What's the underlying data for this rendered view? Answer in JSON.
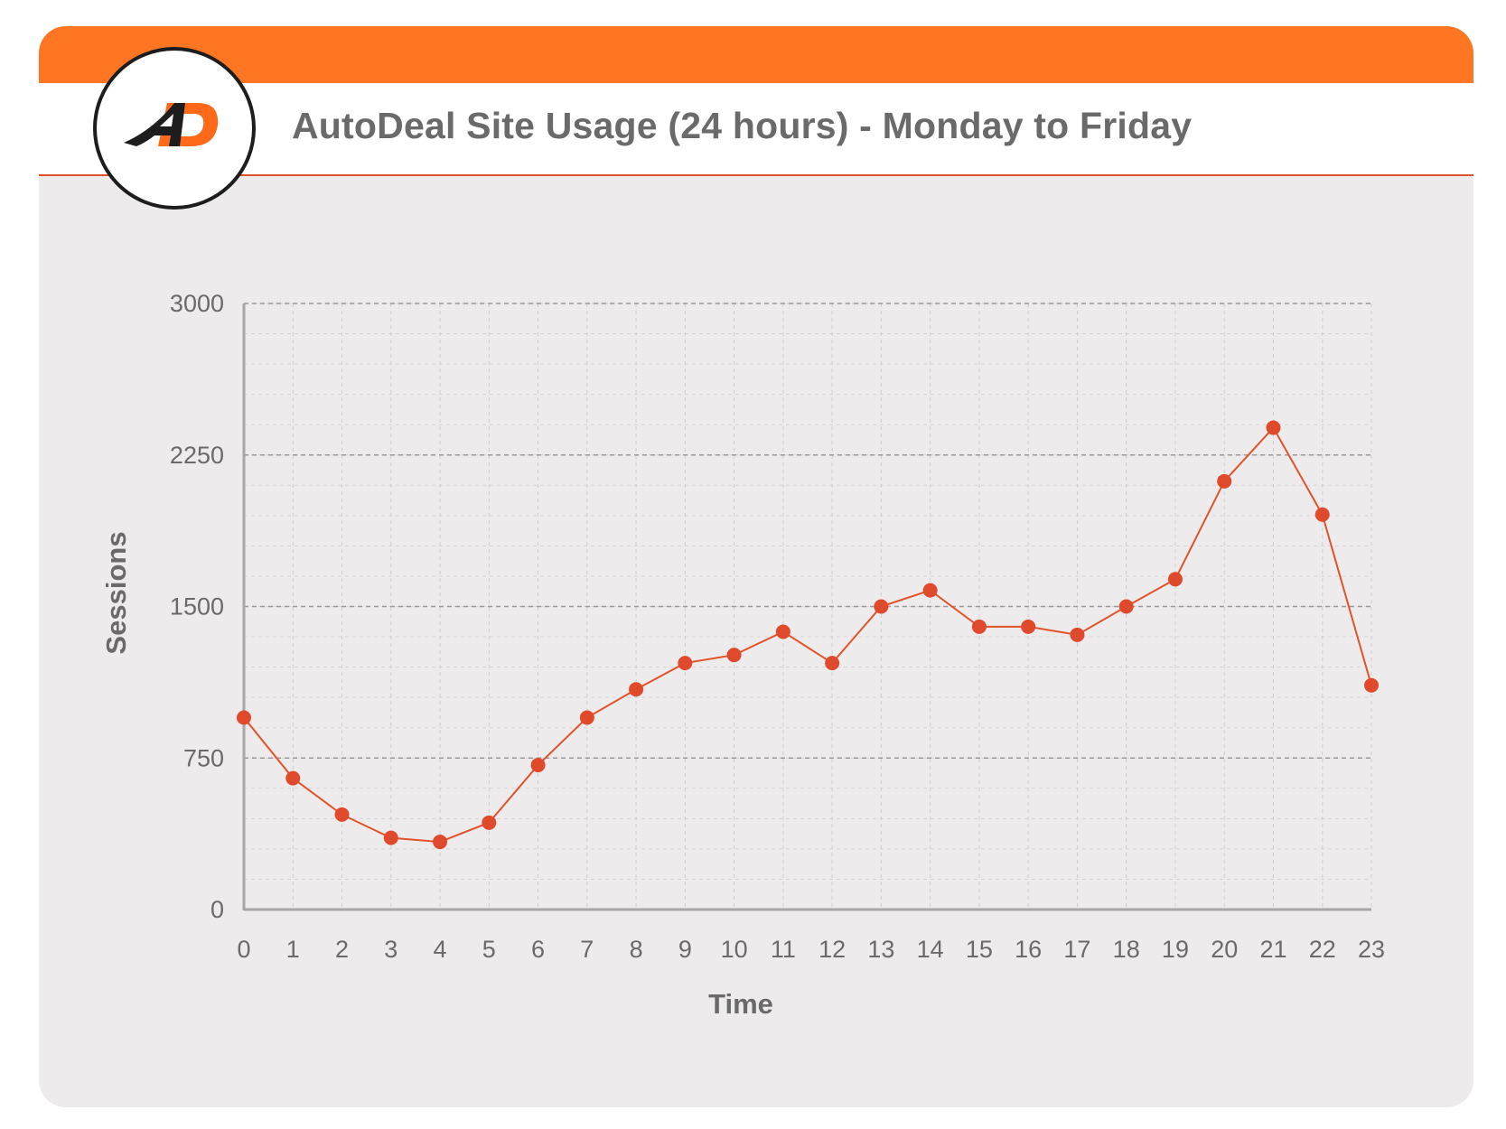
{
  "header": {
    "title": "AutoDeal Site Usage (24 hours) - Monday to Friday"
  },
  "colors": {
    "accent": "#ff7622",
    "line": "#e2522a",
    "point": "#e04a2c",
    "text": "#6a6a6a"
  },
  "chart_data": {
    "type": "line",
    "title": "AutoDeal Site Usage (24 hours) - Monday to Friday",
    "xlabel": "Time",
    "ylabel": "Sessions",
    "categories": [
      "0",
      "1",
      "2",
      "3",
      "4",
      "5",
      "6",
      "7",
      "8",
      "9",
      "10",
      "11",
      "12",
      "13",
      "14",
      "15",
      "16",
      "17",
      "18",
      "19",
      "20",
      "21",
      "22",
      "23"
    ],
    "series": [
      {
        "values": [
          950,
          650,
          470,
          355,
          335,
          430,
          715,
          950,
          1090,
          1220,
          1260,
          1375,
          1220,
          1500,
          1580,
          1400,
          1400,
          1360,
          1500,
          1635,
          2120,
          2385,
          1955,
          1110
        ]
      }
    ],
    "yticks": [
      "0",
      "750",
      "1500",
      "2250",
      "3000"
    ],
    "ylim": [
      0,
      3000
    ],
    "grid": true,
    "legend": "none"
  }
}
